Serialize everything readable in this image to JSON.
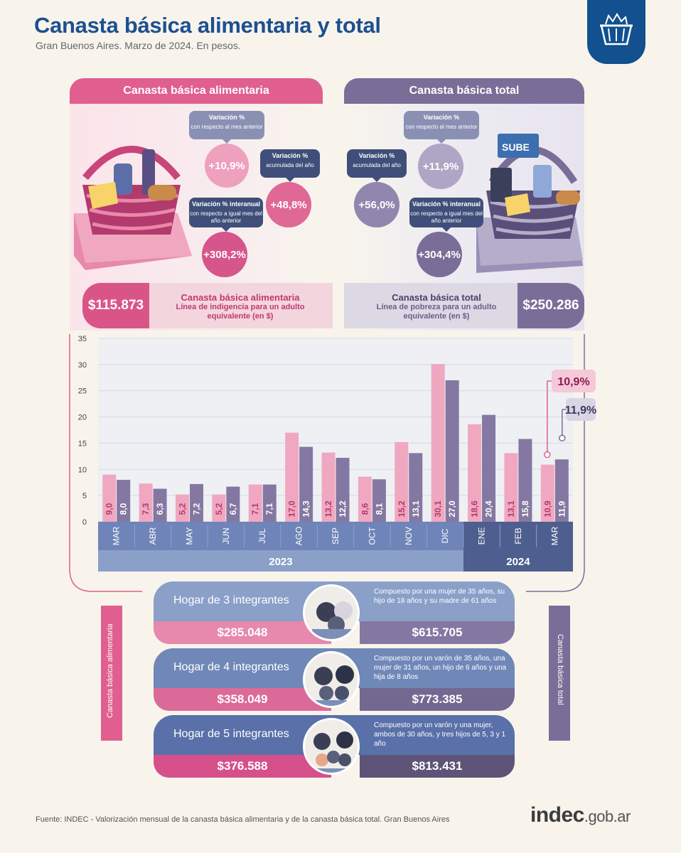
{
  "header": {
    "title": "Canasta básica alimentaria y total",
    "subtitle": "Gran Buenos Aires. Marzo de 2024. En pesos."
  },
  "cba": {
    "heading": "Canasta básica alimentaria",
    "monthly": {
      "label": "Variación %",
      "sub": "con respecto al mes anterior",
      "value": "+10,9%"
    },
    "accum": {
      "label": "Variación %",
      "sub": "acumulada del año",
      "value": "+48,8%"
    },
    "yoy": {
      "label": "Variación % interanual",
      "sub": "con respecto a igual mes del año anterior",
      "value": "+308,2%"
    },
    "price": "$115.873",
    "price_title": "Canasta básica alimentaria",
    "price_sub": "Línea de indigencia para un adulto equivalente (en $)",
    "color": "#e05f8f"
  },
  "cbt": {
    "heading": "Canasta básica total",
    "monthly": {
      "label": "Variación %",
      "sub": "con respecto al mes anterior",
      "value": "+11,9%"
    },
    "accum": {
      "label": "Variación %",
      "sub": "acumulada del año",
      "value": "+56,0%"
    },
    "yoy": {
      "label": "Variación % interanual",
      "sub": "con respecto a igual mes del año anterior",
      "value": "+304,4%"
    },
    "price": "$250.286",
    "price_title": "Canasta básica total",
    "price_sub": "Línea de pobreza para un adulto equivalente (en $)",
    "color": "#7a6e98"
  },
  "chart_data": {
    "type": "bar",
    "categories": [
      "MAR",
      "ABR",
      "MAY",
      "JUN",
      "JUL",
      "AGO",
      "SEP",
      "OCT",
      "NOV",
      "DIC",
      "ENE",
      "FEB",
      "MAR"
    ],
    "groups": [
      {
        "label": "2023",
        "count": 10
      },
      {
        "label": "2024",
        "count": 3
      }
    ],
    "series": [
      {
        "values": [
          9.0,
          7.3,
          5.2,
          5.2,
          7.1,
          17.0,
          13.2,
          8.6,
          15.2,
          30.1,
          18.6,
          13.1,
          10.9
        ],
        "labels": [
          "9,0",
          "7,3",
          "5,2",
          "5,2",
          "7,1",
          "17,0",
          "13,2",
          "8,6",
          "15,2",
          "30,1",
          "18,6",
          "13,1",
          "10,9"
        ],
        "color": "#f0a8c0"
      },
      {
        "values": [
          8.0,
          6.3,
          7.2,
          6.7,
          7.1,
          14.3,
          12.2,
          8.1,
          13.1,
          27.0,
          20.4,
          15.8,
          11.9
        ],
        "labels": [
          "8,0",
          "6,3",
          "7,2",
          "6,7",
          "7,1",
          "14,3",
          "12,2",
          "8,1",
          "13,1",
          "27,0",
          "20,4",
          "15,8",
          "11,9"
        ],
        "color": "#8478a2"
      }
    ],
    "callouts": [
      "10,9%",
      "11,9%"
    ],
    "yticks": [
      0,
      5,
      10,
      15,
      20,
      25,
      30,
      35
    ],
    "ylim": [
      0,
      35
    ],
    "grid": true
  },
  "households": [
    {
      "name": "Hogar de 3 integrantes",
      "desc": "Compuesto por una mujer de 35 años, su hijo de 18 años y su madre de 61 años",
      "cba": "$285.048",
      "cbt": "$615.705"
    },
    {
      "name": "Hogar de 4 integrantes",
      "desc": "Compuesto por un varón de 35 años, una mujer de 31 años, un hijo de 6 años y una hija de 8 años",
      "cba": "$358.049",
      "cbt": "$773.385"
    },
    {
      "name": "Hogar de 5 integrantes",
      "desc": "Compuesto por un varón y una mujer, ambos de 30 años, y tres hijos de 5, 3 y 1 año",
      "cba": "$376.588",
      "cbt": "$813.431"
    }
  ],
  "side": {
    "left": "Canasta básica alimentaria",
    "right": "Canasta básica total"
  },
  "footer": {
    "source": "Fuente: INDEC - Valorización mensual de la canasta básica alimentaria y de la canasta básica total. Gran Buenos Aires",
    "brand_main": "indec",
    "brand_tld": ".gob.ar"
  }
}
